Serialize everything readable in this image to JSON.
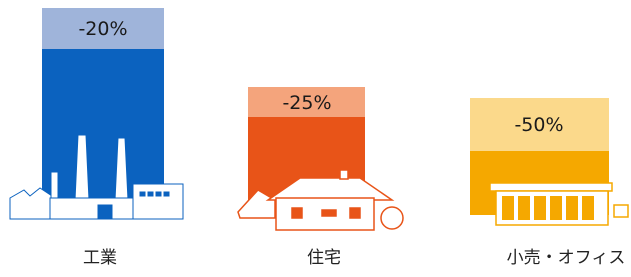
{
  "items": [
    {
      "reduction": "-20%",
      "label": "工業"
    },
    {
      "reduction": "-25%",
      "label": "住宅"
    },
    {
      "reduction": "-50%",
      "label": "小売・オフィス"
    }
  ]
}
